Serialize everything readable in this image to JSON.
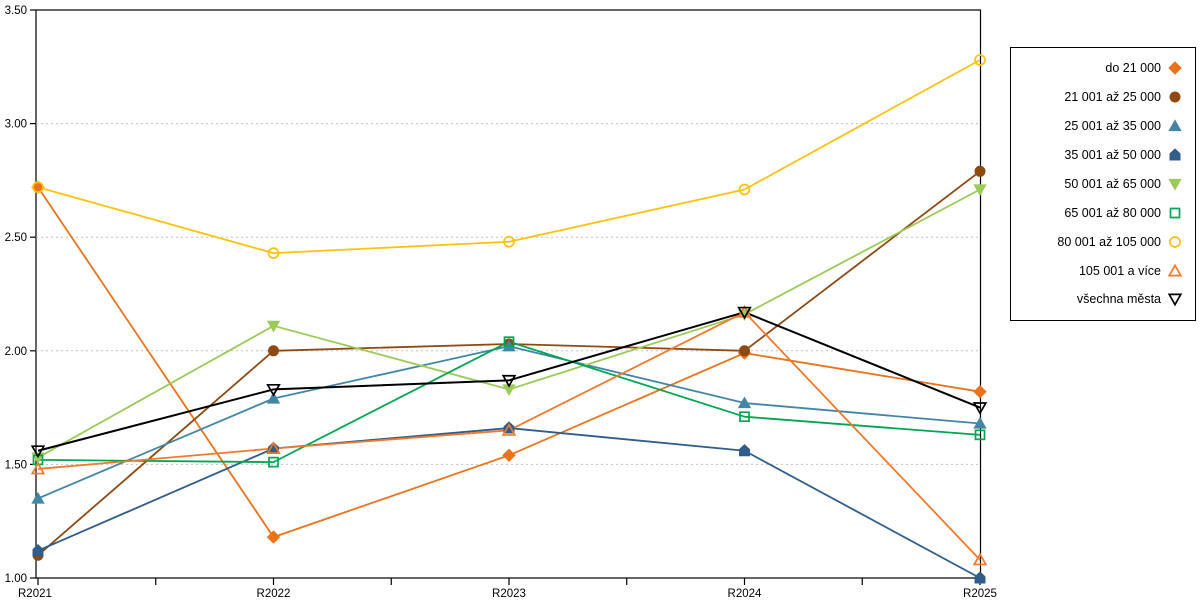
{
  "chart_data": {
    "type": "line",
    "title": "",
    "xlabel": "",
    "ylabel": "",
    "categories": [
      "R2021",
      "R2022",
      "R2023",
      "R2024",
      "R2025"
    ],
    "ylim": [
      1.0,
      3.5
    ],
    "ytick_labels": [
      "1.00",
      "1.50",
      "2.00",
      "2.50",
      "3.00",
      "3.50"
    ],
    "ytick_values": [
      1.0,
      1.5,
      2.0,
      2.5,
      3.0,
      3.5
    ],
    "grid": "horizontal dashed gridlines at 1.50-3.00, solid plot box",
    "legend_position": "right, boxed, text right-aligned with marker at right",
    "series": [
      {
        "name": "do 21 000",
        "color": "#e8731a",
        "marker": "diamond",
        "marker_fill": "solid",
        "values": [
          2.72,
          1.18,
          1.54,
          1.99,
          1.82
        ]
      },
      {
        "name": "21 001 až 25 000",
        "color": "#8e4a10",
        "marker": "circle",
        "marker_fill": "solid",
        "values": [
          1.1,
          2.0,
          2.03,
          2.0,
          2.79
        ]
      },
      {
        "name": "25 001 až 35 000",
        "color": "#4187a5",
        "marker": "triangle-up",
        "marker_fill": "solid",
        "values": [
          1.35,
          1.79,
          2.02,
          1.77,
          1.68
        ]
      },
      {
        "name": "35 001 až 50 000",
        "color": "#305d8a",
        "marker": "pentagon",
        "marker_fill": "solid",
        "values": [
          1.12,
          1.57,
          1.66,
          1.56,
          1.0
        ]
      },
      {
        "name": "50 001 až 65 000",
        "color": "#9aca58",
        "marker": "triangle-down",
        "marker_fill": "solid",
        "values": [
          1.53,
          2.11,
          1.83,
          2.16,
          2.71
        ]
      },
      {
        "name": "65 001 až 80 000",
        "color": "#00a551",
        "marker": "square",
        "marker_fill": "open",
        "values": [
          1.52,
          1.51,
          2.04,
          1.71,
          1.63
        ]
      },
      {
        "name": "80 001 až 105 000",
        "color": "#fdc20f",
        "marker": "circle",
        "marker_fill": "open",
        "values": [
          2.72,
          2.43,
          2.48,
          2.71,
          3.28
        ]
      },
      {
        "name": "105 001 a více",
        "color": "#f2792c",
        "marker": "triangle-up",
        "marker_fill": "open",
        "values": [
          1.48,
          1.57,
          1.65,
          2.17,
          1.08
        ]
      },
      {
        "name": "všechna města",
        "color": "#000000",
        "marker": "triangle-down",
        "marker_fill": "open",
        "values": [
          1.56,
          1.83,
          1.87,
          2.17,
          1.75
        ]
      }
    ]
  }
}
